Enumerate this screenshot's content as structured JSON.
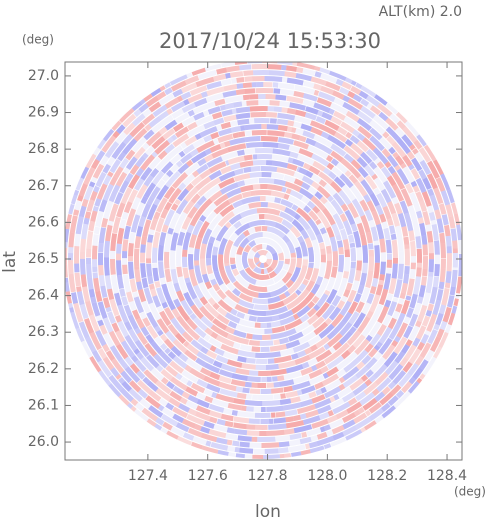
{
  "chart_data": {
    "type": "image",
    "title": "2017/10/24 15:53:30",
    "subtitle": "ALT(km) 2.0",
    "x_label": "lon",
    "y_label": "lat",
    "x_unit": "(deg)",
    "y_unit": "(deg)",
    "xlim": [
      127.123,
      128.45
    ],
    "ylim": [
      25.951,
      27.038
    ],
    "xticks": [
      127.4,
      127.6,
      127.8,
      {
        "value": 128.0,
        "label": "128.0"
      },
      128.2,
      128.4
    ],
    "yticks": [
      {
        "value": 26.0,
        "label": "26.0"
      },
      26.1,
      26.2,
      26.3,
      26.4,
      26.5,
      26.6,
      26.7,
      26.8,
      26.9,
      {
        "value": 27.0,
        "label": "27.0"
      }
    ]
  }
}
